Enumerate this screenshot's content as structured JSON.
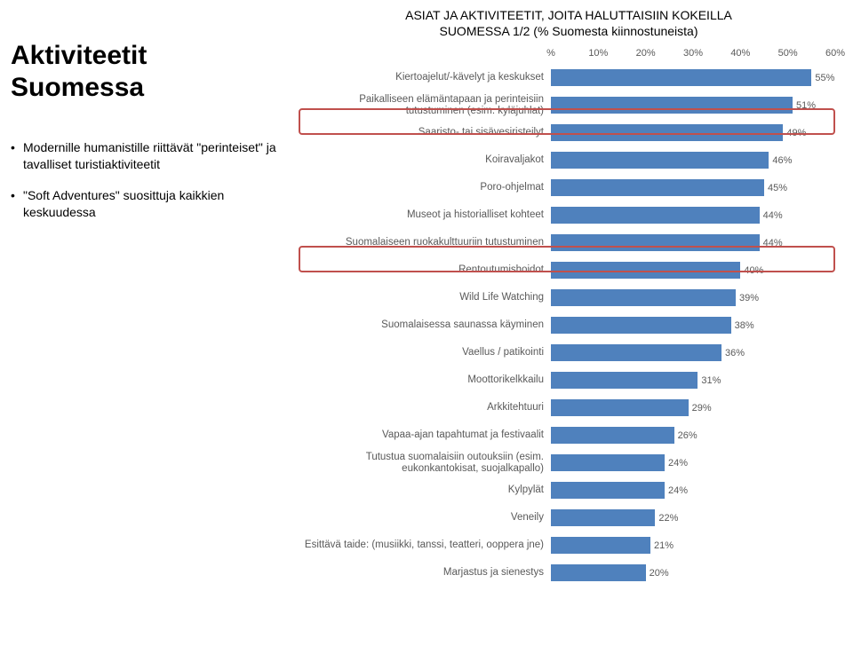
{
  "title": "Aktiviteetit Suomessa",
  "bullets": [
    "Modernille humanistille riittävät \"perinteiset\" ja tavalliset turistiaktiviteetit",
    "\"Soft Adventures\" suosittuja kaikkien keskuudessa"
  ],
  "chart": {
    "type": "bar",
    "title_line1": "ASIAT JA AKTIVITEETIT, JOITA HALUTTAISIIN KOKEILLA",
    "title_line2": "SUOMESSA 1/2 (% Suomesta kiinnostuneista)",
    "x_ticks": [
      "%",
      "10%",
      "20%",
      "30%",
      "40%",
      "50%",
      "60%"
    ],
    "x_max": 60,
    "bar_color": "#4f81bd",
    "label_color": "#595959",
    "highlight_color": "#c0504d",
    "bg_color": "#ffffff",
    "label_fontsize": 11.5,
    "value_fontsize": 11,
    "bars": [
      {
        "label": "Kiertoajelut/-kävelyt ja keskukset",
        "value": 55,
        "highlight": false
      },
      {
        "label": "Paikalliseen elämäntapaan ja perinteisiin tutustuminen (esim. kyläjuhlat)",
        "value": 51,
        "highlight": false
      },
      {
        "label": "Saaristo- tai sisävesiristeilyt",
        "value": 49,
        "highlight": true
      },
      {
        "label": "Koiravaljakot",
        "value": 46,
        "highlight": false
      },
      {
        "label": "Poro-ohjelmat",
        "value": 45,
        "highlight": false
      },
      {
        "label": "Museot ja historialliset kohteet",
        "value": 44,
        "highlight": false
      },
      {
        "label": "Suomalaiseen ruokakulttuuriin tutustuminen",
        "value": 44,
        "highlight": false
      },
      {
        "label": "Rentoutumishoidot",
        "value": 40,
        "highlight": true
      },
      {
        "label": "Wild Life Watching",
        "value": 39,
        "highlight": false
      },
      {
        "label": "Suomalaisessa saunassa käyminen",
        "value": 38,
        "highlight": false
      },
      {
        "label": "Vaellus / patikointi",
        "value": 36,
        "highlight": false
      },
      {
        "label": "Moottorikelkkailu",
        "value": 31,
        "highlight": false
      },
      {
        "label": "Arkkitehtuuri",
        "value": 29,
        "highlight": false
      },
      {
        "label": "Vapaa-ajan tapahtumat ja festivaalit",
        "value": 26,
        "highlight": false
      },
      {
        "label": "Tutustua suomalaisiin outouksiin (esim. eukonkantokisat, suojalkapallo)",
        "value": 24,
        "highlight": false
      },
      {
        "label": "Kylpylät",
        "value": 24,
        "highlight": false
      },
      {
        "label": "Veneily",
        "value": 22,
        "highlight": false
      },
      {
        "label": "Esittävä taide: (musiikki, tanssi, teatteri, ooppera jne)",
        "value": 21,
        "highlight": false
      },
      {
        "label": "Marjastus ja sienestys",
        "value": 20,
        "highlight": false
      }
    ]
  }
}
